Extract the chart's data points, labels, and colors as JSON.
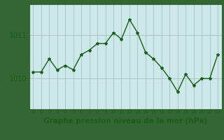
{
  "x": [
    0,
    1,
    2,
    3,
    4,
    5,
    6,
    7,
    8,
    9,
    10,
    11,
    12,
    13,
    14,
    15,
    16,
    17,
    18,
    19,
    20,
    21,
    22,
    23
  ],
  "y": [
    1010.15,
    1010.15,
    1010.45,
    1010.2,
    1010.3,
    1010.2,
    1010.55,
    1010.65,
    1010.8,
    1010.8,
    1011.05,
    1010.9,
    1011.35,
    1011.05,
    1010.6,
    1010.45,
    1010.25,
    1010.0,
    1009.7,
    1010.1,
    1009.85,
    1010.0,
    1010.0,
    1010.55
  ],
  "line_color": "#1a5c1a",
  "marker": "*",
  "marker_size": 3,
  "bg_color": "#cce8e8",
  "grid_color": "#a0b8b8",
  "axis_color": "#336633",
  "xlabel": "Graphe pression niveau de la mer (hPa)",
  "xlabel_fontsize": 7.5,
  "yticks": [
    1010,
    1011
  ],
  "ylim": [
    1009.3,
    1011.7
  ],
  "xlim": [
    -0.5,
    23.5
  ],
  "tick_color": "#1a5c1a",
  "xtick_labels": [
    "0",
    "1",
    "2",
    "3",
    "4",
    "5",
    "6",
    "7",
    "8",
    "9",
    "10",
    "11",
    "12",
    "13",
    "14",
    "15",
    "16",
    "17",
    "18",
    "19",
    "20",
    "21",
    "22",
    "23"
  ],
  "line_width": 1.0,
  "fig_bg_color": "#336633"
}
